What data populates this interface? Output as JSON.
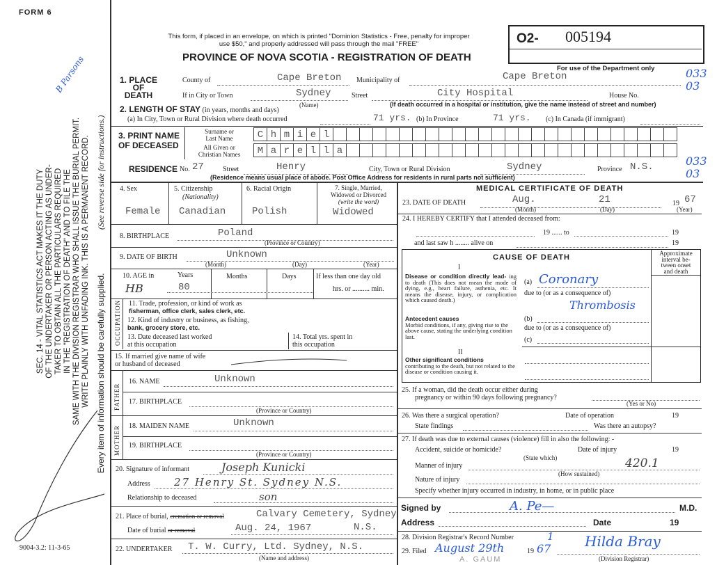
{
  "form_number": "FORM 6",
  "print_code": "9004-3.2: 11-3-65",
  "left_margin": {
    "lines": [
      "SEC. 14 - VITAL STATISTICS ACT MAKES IT THE DUTY",
      "OF THE UNDERTAKER OR PERSON ACTING AS UNDER-",
      "TAKER TO OBTAIN ALL THE PARTICULARS REQUIRED",
      "IN THE \"REGISTRATION OF DEATH\" AND TO FILE THE",
      "SAME WITH THE DIVISION REGISTRAR WHO SHALL ISSUE THE BURIAL PERMIT.",
      "WRITE PLAINLY WITH UNFADING INK. THIS IS A PERMANENT RECORD."
    ],
    "every_item": "Every item of information should be carefully supplied.",
    "see_reverse": "(See reverse side for instructions.)",
    "handwritten_note": "B Parsons"
  },
  "header": {
    "mail_notice_1": "This form, if placed in an envelope, on which is printed \"Dominion Statistics - Free, penalty for improper",
    "mail_notice_2": "use $50,\" and properly addressed will pass through the mail \"FREE\"",
    "title": "PROVINCE OF NOVA SCOTIA - REGISTRATION OF DEATH",
    "reg_prefix": "O2-",
    "reg_number": "005194",
    "dept_only": "For use of the Department only",
    "dept_code_1a": "033",
    "dept_code_1b": "03",
    "dept_code_2a": "033",
    "dept_code_2b": "03"
  },
  "place_of_death": {
    "label": "1. PLACE OF DEATH",
    "county_label": "County of",
    "county": "Cape Breton",
    "municipality_label": "Municipality of",
    "municipality": "Cape Breton",
    "city_label": "If in City or Town",
    "city": "Sydney",
    "name_hint": "(Name)",
    "street_label": "Street",
    "street": "City Hospital",
    "house_label": "House No.",
    "hospital_hint": "(If death occurred in a hospital or institution, give the name instead of street and number)"
  },
  "length_of_stay": {
    "label": "2. LENGTH OF STAY",
    "hint": "(in years, months and days)",
    "a_label": "(a) In City, Town or Rural Division where death occurred",
    "a_value": "71 yrs.",
    "b_label": "(b) In Province",
    "b_value": "71 yrs.",
    "c_label": "(c) In Canada (if immigrant)"
  },
  "name": {
    "label_1": "3. PRINT NAME",
    "label_2": "OF DECEASED",
    "surname_label_1": "Surname or",
    "surname_label_2": "Last Name",
    "given_label_1": "All Given or",
    "given_label_2": "Christian Names",
    "surname_letters": [
      "C",
      "h",
      "m",
      "i",
      "e",
      "l",
      "",
      "",
      "",
      "",
      "",
      "",
      "",
      "",
      "",
      "",
      "",
      "",
      "",
      "",
      "",
      "",
      "",
      "",
      "",
      "",
      "",
      "",
      "",
      "",
      "",
      ""
    ],
    "given_letters": [
      "M",
      "a",
      "r",
      "e",
      "l",
      "l",
      "a",
      "",
      "",
      "",
      "",
      "",
      "",
      "",
      "",
      "",
      "",
      "",
      "",
      "",
      "",
      "",
      "",
      "",
      "",
      "",
      "",
      "",
      "",
      "",
      "",
      ""
    ]
  },
  "residence": {
    "label": "RESIDENCE",
    "no_label": "No.",
    "no": "27",
    "street_label": "Street",
    "street": "Henry",
    "city_label": "City, Town or Rural Division",
    "city": "Sydney",
    "province_label": "Province",
    "province": "N.S.",
    "hint": "(Residence means usual place of abode. Post Office Address for residents in rural parts not sufficient)"
  },
  "personal": {
    "sex_label": "4. Sex",
    "sex": "Female",
    "citizenship_label": "5. Citizenship",
    "citizenship_hint": "(Nationality)",
    "citizenship": "Canadian",
    "racial_label": "6. Racial Origin",
    "racial": "Polish",
    "marital_label_1": "7. Single, Married,",
    "marital_label_2": "Widowed or Divorced",
    "marital_hint": "(write the word)",
    "marital": "Widowed",
    "birthplace_label": "8. BIRTHPLACE",
    "birthplace": "Poland",
    "prov_country": "(Province or Country)",
    "dob_label": "9. DATE OF BIRTH",
    "dob": "Unknown",
    "month": "(Month)",
    "day": "(Day)",
    "year": "(Year)",
    "age_label": "10. AGE in",
    "years_label": "Years",
    "years": "80",
    "months_label": "Months",
    "days_label": "Days",
    "less_day_label": "If less than one day old",
    "hrs_min": "hrs. or .......... min.",
    "age_initials": "HB"
  },
  "occupation": {
    "side_label": "OCCUPATION",
    "q11_1": "11. Trade, profession, or kind of work as",
    "q11_2": "fisherman, office clerk, sales clerk, etc.",
    "q12_1": "12. Kind of industry or business, as fishing,",
    "q12_2": "bank, grocery store, etc.",
    "q13_1": "13. Date deceased last worked",
    "q13_2": "at this occupation",
    "q14_1": "14. Total yrs. spent in",
    "q14_2": "this occupation"
  },
  "spouse": {
    "q15_1": "15. If married give name of wife",
    "q15_2": "or husband of deceased"
  },
  "father": {
    "side_label": "FATHER",
    "name_label": "16. NAME",
    "name": "Unknown",
    "birthplace_label": "17. BIRTHPLACE"
  },
  "mother": {
    "side_label": "MOTHER",
    "maiden_label": "18. MAIDEN NAME",
    "maiden": "Unknown",
    "birthplace_label": "19. BIRTHPLACE"
  },
  "informant": {
    "signature_label": "20. Signature of informant",
    "signature": "Joseph Kunicki",
    "address_label": "Address",
    "address": "27 Henry St. Sydney N.S.",
    "relationship_label": "Relationship to deceased",
    "relationship": "son"
  },
  "burial": {
    "place_label": "21. Place of burial,",
    "place_struck": "cremation or removal",
    "place": "Calvary Cemetery, Sydney",
    "place_2": "N.S.",
    "date_label": "Date of burial",
    "date_struck": "or removal",
    "date": "Aug. 24, 1967",
    "undertaker_label": "22. UNDERTAKER",
    "undertaker": "T. W. Curry, Ltd. Sydney, N.S.",
    "undertaker_hint": "(Name and address)"
  },
  "medical": {
    "title": "MEDICAL CERTIFICATE OF DEATH",
    "q23_label": "23. DATE OF DEATH",
    "death_month": "Aug.",
    "death_day": "21",
    "death_year_prefix": "19",
    "death_year": "67",
    "q24": "24. I HEREBY CERTIFY that I attended deceased from:",
    "nineteen": "19",
    "to": "to",
    "last_saw": "and last saw h ........  alive on",
    "cause_title": "CAUSE OF DEATH",
    "interval_1": "Approximate",
    "interval_2": "interval be-",
    "interval_3": "tween onset",
    "interval_4": "and death",
    "part_i": "I",
    "disease_bold": "Disease or condition directly lead-",
    "disease_text": "ing to death (This does not mean the mode of dying, e.g., heart failure, asthenia, etc. It means the disease, injury, or complication which caused death.)",
    "a": "(a)",
    "cause_a": "Coronary",
    "due_to": "due to (or as a consequence of)",
    "cause_a2": "Thrombosis",
    "antecedent_bold": "Antecedent causes",
    "antecedent_text": "Morbid conditions, if any, giving rise to the above cause, stating the underlying condition last.",
    "b": "(b)",
    "c": "(c)",
    "part_ii": "II",
    "other_bold": "Other significant conditions",
    "other_text": "contributing to the death, but not related to the disease or condition causing it.",
    "q25_1": "25. If a woman, did the death occur either during",
    "q25_2": "pregnancy or within 90 days following pregnancy?",
    "yes_no": "(Yes or No)",
    "q26": "26. Was there a surgical operation?",
    "date_op": "Date of operation",
    "state_findings": "State findings",
    "autopsy": "Was there an autopsy?",
    "q27": "27. If death was due to external causes (violence) fill in also the following: -",
    "accident": "Accident, suicide or homicide?",
    "state_which": "(State which)",
    "date_injury": "Date of injury",
    "manner": "Manner of injury",
    "how": "(How sustained)",
    "code": "420.1",
    "nature": "Nature of injury",
    "specify": "Specify whether injury occurred in industry, in home, or in public place",
    "signed_by": "Signed by",
    "physician_sig": "A. Pe—",
    "md": "M.D.",
    "address": "Address",
    "date": "Date"
  },
  "registrar": {
    "q28": "28. Division Registrar's Record Number",
    "record_number": "1",
    "q29": "29. Filed",
    "filed": "August 29th",
    "filed_year_prefix": "19",
    "filed_year": "67",
    "signature": "Hilda Bray",
    "label": "(Division Registrar)",
    "stamp": "A. GAUM"
  }
}
